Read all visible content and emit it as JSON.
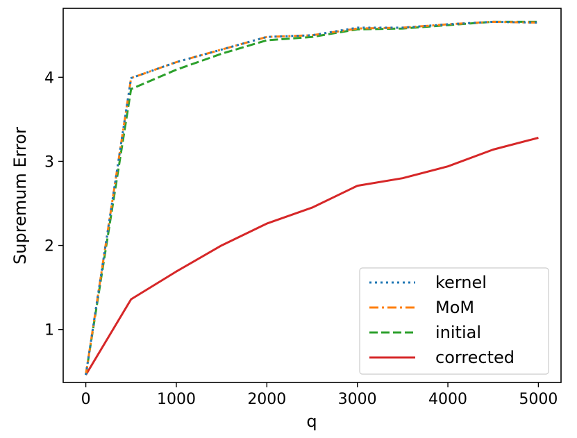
{
  "chart_data": {
    "type": "line",
    "xlabel": "q",
    "ylabel": "Supremum Error",
    "xlim": [
      -250,
      5250
    ],
    "ylim": [
      0.37,
      4.82
    ],
    "xticks": [
      0,
      1000,
      2000,
      3000,
      4000,
      5000
    ],
    "xtick_labels": [
      "0",
      "1000",
      "2000",
      "3000",
      "4000",
      "5000"
    ],
    "yticks": [
      1,
      2,
      3,
      4
    ],
    "ytick_labels": [
      "1",
      "2",
      "3",
      "4"
    ],
    "grid": false,
    "legend_position": "lower-right",
    "series": [
      {
        "name": "kernel",
        "color": "#1f77b4",
        "style": "dotted",
        "x": [
          0,
          500,
          1000,
          1500,
          2000,
          2500,
          3000,
          3500,
          4000,
          4500,
          5000
        ],
        "y": [
          0.46,
          3.99,
          4.18,
          4.33,
          4.48,
          4.5,
          4.59,
          4.59,
          4.63,
          4.66,
          4.65
        ]
      },
      {
        "name": "MoM",
        "color": "#ff7f0e",
        "style": "dashdot",
        "x": [
          0,
          500,
          1000,
          1500,
          2000,
          2500,
          3000,
          3500,
          4000,
          4500,
          5000
        ],
        "y": [
          0.46,
          3.99,
          4.18,
          4.33,
          4.48,
          4.5,
          4.58,
          4.59,
          4.63,
          4.66,
          4.65
        ]
      },
      {
        "name": "initial",
        "color": "#2ca02c",
        "style": "dashed",
        "x": [
          0,
          500,
          1000,
          1500,
          2000,
          2500,
          3000,
          3500,
          4000,
          4500,
          5000
        ],
        "y": [
          0.46,
          3.86,
          4.09,
          4.28,
          4.44,
          4.48,
          4.57,
          4.58,
          4.62,
          4.66,
          4.66
        ]
      },
      {
        "name": "corrected",
        "color": "#d62728",
        "style": "solid",
        "x": [
          0,
          500,
          1000,
          1500,
          2000,
          2500,
          3000,
          3500,
          4000,
          4500,
          5000
        ],
        "y": [
          0.46,
          1.36,
          1.69,
          2.0,
          2.26,
          2.45,
          2.71,
          2.8,
          2.94,
          3.14,
          3.28
        ]
      }
    ]
  }
}
